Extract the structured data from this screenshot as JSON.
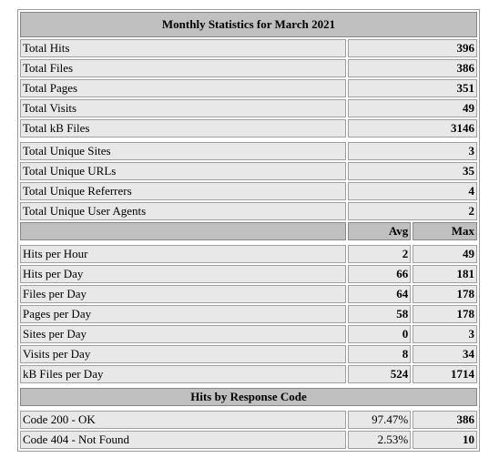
{
  "title": "Monthly Statistics for March 2021",
  "totals": [
    {
      "label": "Total Hits",
      "value": "396"
    },
    {
      "label": "Total Files",
      "value": "386"
    },
    {
      "label": "Total Pages",
      "value": "351"
    },
    {
      "label": "Total Visits",
      "value": "49"
    },
    {
      "label": "Total kB Files",
      "value": "3146"
    }
  ],
  "unique": [
    {
      "label": "Total Unique Sites",
      "value": "3"
    },
    {
      "label": "Total Unique URLs",
      "value": "35"
    },
    {
      "label": "Total Unique Referrers",
      "value": "4"
    },
    {
      "label": "Total Unique User Agents",
      "value": "2"
    }
  ],
  "perheader": {
    "avg": "Avg",
    "max": "Max"
  },
  "per": [
    {
      "label": "Hits per Hour",
      "avg": "2",
      "max": "49"
    },
    {
      "label": "Hits per Day",
      "avg": "66",
      "max": "181"
    },
    {
      "label": "Files per Day",
      "avg": "64",
      "max": "178"
    },
    {
      "label": "Pages per Day",
      "avg": "58",
      "max": "178"
    },
    {
      "label": "Sites per Day",
      "avg": "0",
      "max": "3"
    },
    {
      "label": "Visits per Day",
      "avg": "8",
      "max": "34"
    },
    {
      "label": "kB Files per Day",
      "avg": "524",
      "max": "1714"
    }
  ],
  "responseHeader": "Hits by Response Code",
  "codes": [
    {
      "label": "Code 200 - OK",
      "pct": "97.47%",
      "value": "386"
    },
    {
      "label": "Code 404 - Not Found",
      "pct": "2.53%",
      "value": "10"
    }
  ]
}
